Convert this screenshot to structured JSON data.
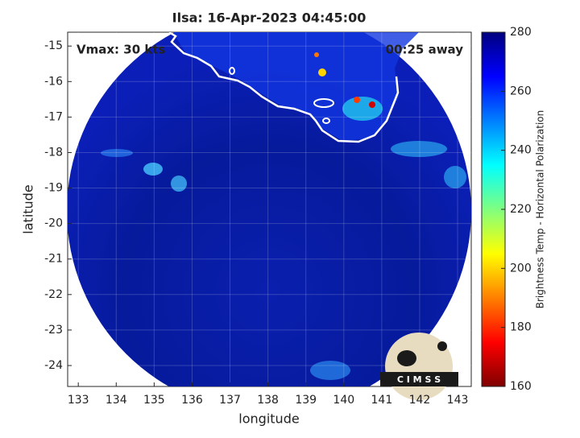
{
  "chart_data": {
    "type": "map",
    "title": "Ilsa: 16-Apr-2023 04:45:00",
    "annotations": [
      "Vmax: 30 kts",
      "00:25 away"
    ],
    "xlabel": "longitude",
    "ylabel": "latitude",
    "xlim": [
      132.72,
      143.36
    ],
    "ylim": [
      -24.59,
      -14.61
    ],
    "xticks": [
      133,
      134,
      135,
      136,
      137,
      138,
      139,
      140,
      141,
      142,
      143
    ],
    "yticks": [
      -24,
      -23,
      -22,
      -21,
      -20,
      -19,
      -18,
      -17,
      -16,
      -15
    ],
    "grid": true,
    "colorbar": {
      "label": "Brightness Temp - Horizontal Polarization",
      "lim": [
        160,
        280
      ],
      "ticks": [
        160,
        180,
        200,
        220,
        240,
        260,
        280
      ]
    },
    "logo": "C I M S S"
  }
}
